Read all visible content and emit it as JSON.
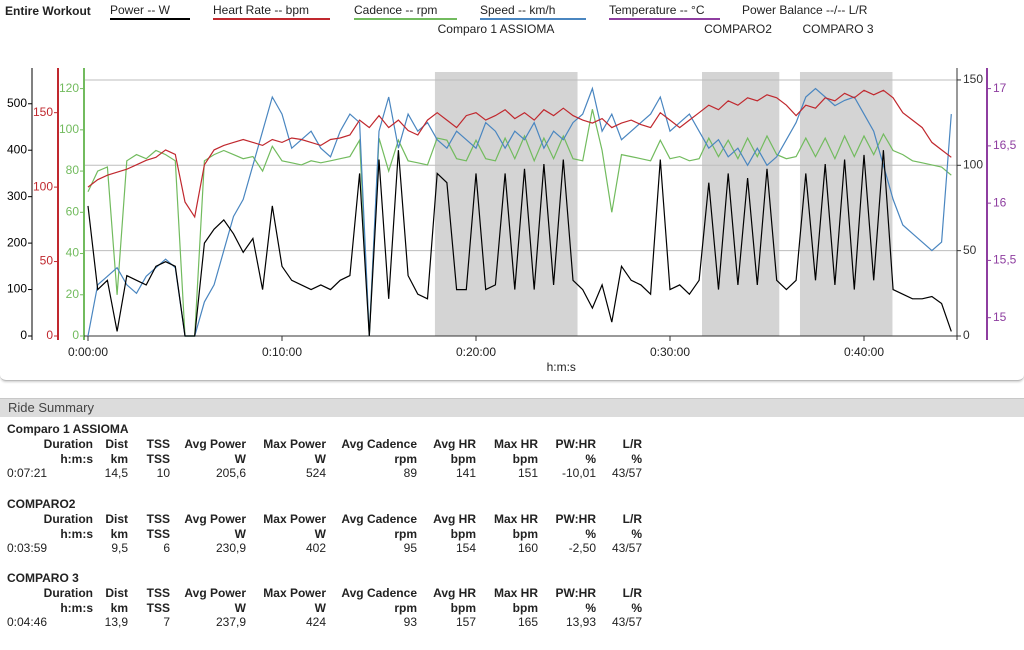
{
  "header": {
    "title": "Entire Workout",
    "legend": [
      {
        "name": "Power  -- W",
        "color": "#000000"
      },
      {
        "name": "Heart Rate  -- bpm",
        "color": "#c0282e"
      },
      {
        "name": "Cadence  -- rpm",
        "color": "#72bb5e"
      },
      {
        "name": "Speed  -- km/h",
        "color": "#4a86c0"
      },
      {
        "name": "Temperature  -- °C",
        "color": "#8e3ea0"
      },
      {
        "name": "Power Balance  --/-- L/R",
        "color": null
      }
    ]
  },
  "chart_data": {
    "type": "line",
    "xlabel": "h:m:s",
    "xlim": [
      0,
      2680
    ],
    "xticks": [
      {
        "value": 0,
        "label": "0:00:00"
      },
      {
        "value": 600,
        "label": "0:10:00"
      },
      {
        "value": 1200,
        "label": "0:20:00"
      },
      {
        "value": 1800,
        "label": "0:30:00"
      },
      {
        "value": 2400,
        "label": "0:40:00"
      }
    ],
    "grid": true,
    "axes": {
      "power": {
        "lim": [
          0,
          577
        ],
        "ticks": [
          0,
          100,
          200,
          300,
          400,
          500
        ],
        "color": "#000000",
        "side": "left"
      },
      "hr": {
        "lim": [
          0,
          180
        ],
        "ticks": [
          0,
          50,
          100,
          150
        ],
        "color": "#c0282e",
        "side": "left"
      },
      "cadence": {
        "lim": [
          0,
          130
        ],
        "ticks": [
          0,
          20,
          40,
          60,
          80,
          100,
          120
        ],
        "color": "#72bb5e",
        "side": "left"
      },
      "speed": {
        "lim": [
          0,
          157
        ],
        "ticks": [
          0,
          50,
          100,
          150
        ],
        "color": "#333333",
        "side": "right"
      },
      "temperature": {
        "lim": [
          14.84,
          17.18
        ],
        "ticks": [
          15,
          {
            "value": 15.5,
            "label": "15,5"
          },
          16,
          {
            "value": 16.5,
            "label": "16,5"
          },
          17
        ],
        "color": "#8e3ea0",
        "side": "right"
      }
    },
    "intervals": [
      {
        "name": "Comparo 1 ASSIOMA",
        "start": 1073,
        "end": 1514
      },
      {
        "name": "COMPARO2",
        "start": 1899,
        "end": 2138
      },
      {
        "name": "COMPARO 3",
        "start": 2202,
        "end": 2488
      }
    ],
    "x": [
      0,
      30,
      60,
      90,
      120,
      150,
      180,
      210,
      240,
      270,
      300,
      330,
      360,
      390,
      420,
      450,
      480,
      510,
      540,
      570,
      600,
      630,
      660,
      690,
      720,
      750,
      780,
      810,
      840,
      870,
      900,
      930,
      960,
      990,
      1020,
      1050,
      1080,
      1110,
      1140,
      1170,
      1200,
      1230,
      1260,
      1290,
      1320,
      1350,
      1380,
      1410,
      1440,
      1470,
      1500,
      1530,
      1560,
      1590,
      1620,
      1650,
      1680,
      1710,
      1740,
      1770,
      1800,
      1830,
      1860,
      1890,
      1920,
      1950,
      1980,
      2010,
      2040,
      2070,
      2100,
      2130,
      2160,
      2190,
      2220,
      2250,
      2280,
      2310,
      2340,
      2370,
      2400,
      2430,
      2460,
      2490,
      2520,
      2550,
      2580,
      2610,
      2640,
      2670
    ],
    "series": [
      {
        "name": "Cadence",
        "axis": "cadence",
        "color": "#72bb5e",
        "values": [
          70,
          80,
          82,
          20,
          85,
          88,
          86,
          90,
          88,
          85,
          0,
          0,
          85,
          88,
          90,
          88,
          86,
          87,
          80,
          92,
          85,
          84,
          83,
          85,
          84,
          85,
          86,
          87,
          95,
          0,
          96,
          80,
          95,
          85,
          84,
          83,
          96,
          95,
          86,
          85,
          95,
          86,
          85,
          96,
          86,
          97,
          85,
          96,
          86,
          97,
          86,
          85,
          110,
          90,
          60,
          88,
          87,
          86,
          85,
          95,
          86,
          87,
          85,
          86,
          96,
          87,
          95,
          86,
          96,
          87,
          97,
          88,
          86,
          87,
          96,
          87,
          96,
          86,
          97,
          87,
          97,
          88,
          98,
          90,
          88,
          85,
          84,
          83,
          82,
          78
        ]
      },
      {
        "name": "Speed",
        "axis": "speed",
        "color": "#4a86c0",
        "values": [
          0,
          30,
          35,
          40,
          30,
          25,
          35,
          40,
          45,
          40,
          0,
          0,
          20,
          30,
          50,
          70,
          80,
          100,
          120,
          140,
          130,
          110,
          115,
          120,
          110,
          105,
          120,
          130,
          125,
          0,
          120,
          140,
          110,
          130,
          120,
          125,
          115,
          110,
          120,
          115,
          110,
          125,
          120,
          110,
          120,
          115,
          125,
          110,
          120,
          115,
          125,
          130,
          145,
          120,
          130,
          115,
          120,
          125,
          130,
          140,
          120,
          125,
          130,
          120,
          110,
          115,
          105,
          110,
          100,
          110,
          100,
          105,
          115,
          125,
          140,
          145,
          140,
          135,
          138,
          140,
          130,
          120,
          100,
          80,
          65,
          60,
          55,
          50,
          55,
          130
        ]
      },
      {
        "name": "Heart Rate",
        "axis": "hr",
        "color": "#c0282e",
        "values": [
          100,
          105,
          108,
          110,
          112,
          115,
          118,
          120,
          125,
          122,
          90,
          80,
          115,
          125,
          128,
          130,
          132,
          130,
          128,
          132,
          130,
          133,
          132,
          130,
          128,
          132,
          133,
          135,
          145,
          140,
          148,
          140,
          145,
          138,
          135,
          145,
          150,
          145,
          140,
          148,
          150,
          145,
          148,
          152,
          146,
          150,
          145,
          152,
          148,
          153,
          148,
          145,
          143,
          146,
          140,
          143,
          145,
          142,
          140,
          150,
          145,
          140,
          145,
          150,
          155,
          152,
          158,
          155,
          160,
          158,
          162,
          160,
          155,
          148,
          155,
          153,
          160,
          158,
          163,
          160,
          165,
          162,
          165,
          160,
          150,
          145,
          140,
          130,
          125,
          120
        ]
      },
      {
        "name": "Power",
        "axis": "power",
        "color": "#000000",
        "values": [
          280,
          100,
          120,
          10,
          130,
          120,
          110,
          150,
          160,
          150,
          0,
          0,
          200,
          230,
          250,
          220,
          180,
          210,
          100,
          280,
          150,
          120,
          110,
          100,
          110,
          100,
          120,
          130,
          350,
          0,
          380,
          80,
          400,
          130,
          90,
          80,
          350,
          330,
          100,
          100,
          350,
          100,
          110,
          350,
          100,
          360,
          100,
          370,
          110,
          380,
          120,
          100,
          60,
          110,
          30,
          150,
          120,
          110,
          90,
          380,
          100,
          110,
          90,
          120,
          330,
          100,
          350,
          110,
          340,
          110,
          360,
          120,
          100,
          120,
          350,
          120,
          370,
          110,
          380,
          100,
          390,
          120,
          400,
          100,
          90,
          80,
          80,
          85,
          70,
          10
        ]
      }
    ]
  },
  "summary": {
    "title": "Ride Summary",
    "headers": [
      "Duration",
      "Dist",
      "TSS",
      "Avg Power",
      "Max Power",
      "Avg Cadence",
      "Avg HR",
      "Max HR",
      "PW:HR",
      "L/R"
    ],
    "units": [
      "h:m:s",
      "km",
      "TSS",
      "W",
      "W",
      "rpm",
      "bpm",
      "bpm",
      "%",
      "%"
    ],
    "rows": [
      [
        "0:07:21",
        "14,5",
        "10",
        "205,6",
        "524",
        "89",
        "141",
        "151",
        "-10,01",
        "43/57"
      ],
      [
        "0:03:59",
        "9,5",
        "6",
        "230,9",
        "402",
        "95",
        "154",
        "160",
        "-2,50",
        "43/57"
      ],
      [
        "0:04:46",
        "13,9",
        "7",
        "237,9",
        "424",
        "93",
        "157",
        "165",
        "13,93",
        "43/57"
      ]
    ]
  }
}
